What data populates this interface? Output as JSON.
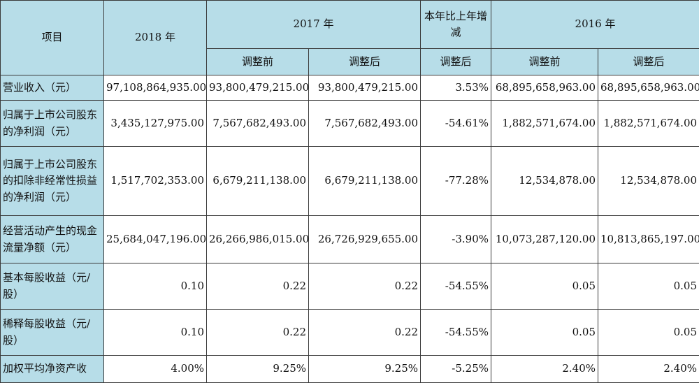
{
  "header": {
    "item": "项目",
    "y2018": "2018 年",
    "y2017": "2017 年",
    "yoy": "本年比上年增减",
    "y2016": "2016 年",
    "before_adj": "调整前",
    "after_adj": "调整后"
  },
  "rows": [
    {
      "label": "营业收入（元）",
      "v2018": "97,108,864,935.00",
      "v2017_before": "93,800,479,215.00",
      "v2017_after": "93,800,479,215.00",
      "yoy": "3.53%",
      "v2016_before": "68,895,658,963.00",
      "v2016_after": "68,895,658,963.00"
    },
    {
      "label": "归属于上市公司股东的净利润（元）",
      "v2018": "3,435,127,975.00",
      "v2017_before": "7,567,682,493.00",
      "v2017_after": "7,567,682,493.00",
      "yoy": "-54.61%",
      "v2016_before": "1,882,571,674.00",
      "v2016_after": "1,882,571,674.00"
    },
    {
      "label": "归属于上市公司股东的扣除非经常性损益的净利润（元）",
      "v2018": "1,517,702,353.00",
      "v2017_before": "6,679,211,138.00",
      "v2017_after": "6,679,211,138.00",
      "yoy": "-77.28%",
      "v2016_before": "12,534,878.00",
      "v2016_after": "12,534,878.00"
    },
    {
      "label": "经营活动产生的现金流量净额（元）",
      "v2018": "25,684,047,196.00",
      "v2017_before": "26,266,986,015.00",
      "v2017_after": "26,726,929,655.00",
      "yoy": "-3.90%",
      "v2016_before": "10,073,287,120.00",
      "v2016_after": "10,813,865,197.00"
    },
    {
      "label": "基本每股收益（元/股）",
      "v2018": "0.10",
      "v2017_before": "0.22",
      "v2017_after": "0.22",
      "yoy": "-54.55%",
      "v2016_before": "0.05",
      "v2016_after": "0.05"
    },
    {
      "label": "稀释每股收益（元/股）",
      "v2018": "0.10",
      "v2017_before": "0.22",
      "v2017_after": "0.22",
      "yoy": "-54.55%",
      "v2016_before": "0.05",
      "v2016_after": "0.05"
    },
    {
      "label": "加权平均净资产收",
      "v2018": "4.00%",
      "v2017_before": "9.25%",
      "v2017_after": "9.25%",
      "yoy": "-5.25%",
      "v2016_before": "2.40%",
      "v2016_after": "2.40%"
    }
  ]
}
